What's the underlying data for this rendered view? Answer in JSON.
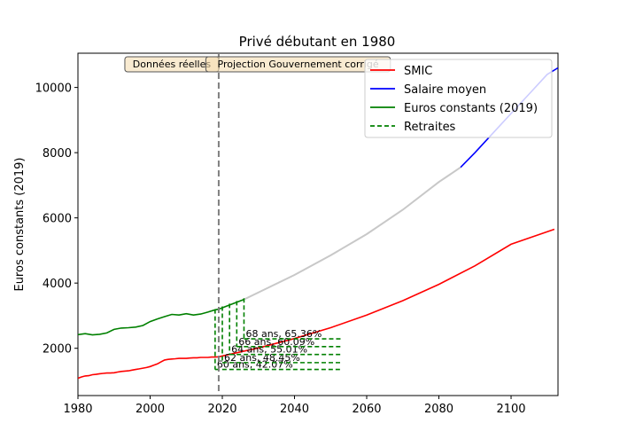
{
  "chart_data": {
    "type": "line",
    "title": "Privé débutant en 1980",
    "xlabel": "",
    "ylabel": "Euros constants (2019)",
    "xlim": [
      1980,
      2113
    ],
    "ylim": [
      550,
      11050
    ],
    "xticks": [
      1980,
      2000,
      2020,
      2040,
      2060,
      2080,
      2100
    ],
    "yticks": [
      2000,
      4000,
      6000,
      8000,
      10000
    ],
    "grid": false,
    "legend_position": "top-right",
    "legend": [
      {
        "label": "SMIC",
        "color": "#ff0000",
        "style": "solid"
      },
      {
        "label": "Salaire moyen",
        "color": "#0000ff",
        "style": "solid"
      },
      {
        "label": "Euros constants (2019)",
        "color": "#008000",
        "style": "solid"
      },
      {
        "label": "Retraites",
        "color": "#008000",
        "style": "dashed"
      }
    ],
    "divider_x": 2019,
    "annotations": [
      {
        "text": "Données réelles",
        "x": 2006
      },
      {
        "text": "Projection Gouvernement corrigé",
        "x": 2041
      }
    ],
    "series": [
      {
        "name": "SMIC",
        "color": "#ff0000",
        "x": [
          1980,
          1981,
          1982,
          1983,
          1984,
          1985,
          1986,
          1987,
          1988,
          1989,
          1990,
          1991,
          1992,
          1993,
          1994,
          1995,
          1996,
          1997,
          1998,
          1999,
          2000,
          2001,
          2002,
          2003,
          2004,
          2005,
          2006,
          2007,
          2008,
          2009,
          2010,
          2011,
          2012,
          2013,
          2014,
          2015,
          2016,
          2017,
          2018,
          2019,
          2030,
          2040,
          2050,
          2060,
          2070,
          2080,
          2090,
          2100,
          2112
        ],
        "y": [
          1080,
          1120,
          1150,
          1160,
          1190,
          1200,
          1220,
          1230,
          1240,
          1240,
          1250,
          1270,
          1290,
          1300,
          1310,
          1330,
          1350,
          1370,
          1390,
          1410,
          1440,
          1480,
          1520,
          1580,
          1640,
          1660,
          1670,
          1680,
          1690,
          1690,
          1690,
          1700,
          1710,
          1710,
          1720,
          1720,
          1720,
          1730,
          1730,
          1740,
          2010,
          2300,
          2630,
          3020,
          3460,
          3960,
          4530,
          5190,
          5650
        ]
      },
      {
        "name": "Salaire moyen",
        "color": "#0000ff",
        "x": [
          2086,
          2090,
          2095,
          2100,
          2105,
          2110,
          2113
        ],
        "y": [
          7550,
          8000,
          8600,
          9200,
          9800,
          10400,
          10600
        ]
      },
      {
        "name": "Euros constants (2019)",
        "color": "#008000",
        "x": [
          1980,
          1982,
          1984,
          1986,
          1988,
          1990,
          1992,
          1994,
          1996,
          1998,
          2000,
          2002,
          2004,
          2006,
          2008,
          2010,
          2012,
          2014,
          2016,
          2018,
          2019,
          2026
        ],
        "y": [
          2420,
          2450,
          2410,
          2430,
          2470,
          2580,
          2620,
          2630,
          2650,
          2700,
          2820,
          2900,
          2970,
          3040,
          3020,
          3060,
          3020,
          3050,
          3110,
          3180,
          3200,
          3500
        ]
      },
      {
        "name": "Projection",
        "color": "#c8c8c8",
        "x": [
          2026,
          2040,
          2050,
          2060,
          2070,
          2080,
          2086
        ],
        "y": [
          3500,
          4250,
          4850,
          5500,
          6250,
          7100,
          7550
        ]
      }
    ],
    "retraites": [
      {
        "label": "60 ans, 42.07%",
        "start": 2018,
        "value": 1350
      },
      {
        "label": "62 ans, 48.45%",
        "start": 2020,
        "value": 1560
      },
      {
        "label": "64 ans, 55.01%",
        "start": 2022,
        "value": 1810
      },
      {
        "label": "66 ans, 60.09%",
        "start": 2024,
        "value": 2050
      },
      {
        "label": "68 ans, 65.36%",
        "start": 2026,
        "value": 2290
      }
    ],
    "retraite_end": 2053
  }
}
